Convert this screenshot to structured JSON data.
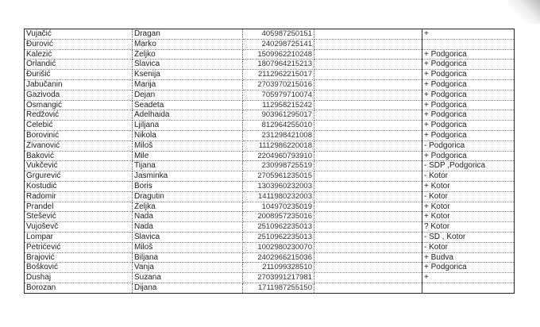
{
  "rows": [
    {
      "surname": "Vujačić",
      "name": "Dragan",
      "id": "405987250151",
      "note": "",
      "status": "+"
    },
    {
      "surname": "Đurović",
      "name": "Marko",
      "id": "240298725141",
      "note": "",
      "status": ""
    },
    {
      "surname": "Kalezić",
      "name": "Željko",
      "id": "1509962210248",
      "note": "",
      "status": "+ Podgorica"
    },
    {
      "surname": "Orlandić",
      "name": "Slavica",
      "id": "1807964215213",
      "note": "",
      "status": "+ Podgorica"
    },
    {
      "surname": "Đurišić",
      "name": "Ksenija",
      "id": "2112962215017",
      "note": "",
      "status": "+ Podgorica"
    },
    {
      "surname": "Jabučanin",
      "name": "Marija",
      "id": "2703970215016",
      "note": "",
      "status": "+ Podgorica"
    },
    {
      "surname": "Gazivoda",
      "name": "Dejan",
      "id": "705979710074",
      "note": "",
      "status": "+ Podgorica"
    },
    {
      "surname": "Osmangić",
      "name": "Seadeta",
      "id": "112958215242",
      "note": "",
      "status": "+ Podgorica"
    },
    {
      "surname": "Redžović",
      "name": "Adelhaida",
      "id": "903961295017",
      "note": "",
      "status": "+ Podgorica"
    },
    {
      "surname": "Čelebić",
      "name": "Ljiljana",
      "id": "812964255010",
      "note": "",
      "status": "+ Podgorica"
    },
    {
      "surname": "Borovinić",
      "name": "Nikola",
      "id": "231298421008",
      "note": "",
      "status": "+ Podgorica"
    },
    {
      "surname": "Živanović",
      "name": "Miloš",
      "id": "1112986220018",
      "note": "",
      "status": "- Podgorica"
    },
    {
      "surname": "Baković",
      "name": "Mile",
      "id": "2204960793910",
      "note": "",
      "status": "+ Podgorica"
    },
    {
      "surname": "Vukčević",
      "name": "Tijana",
      "id": "230998725519",
      "note": "",
      "status": "- SDP ,Podgorica"
    },
    {
      "surname": "Grgurević",
      "name": "Jasminka",
      "id": "2705961235015",
      "note": "",
      "status": "- Kotor"
    },
    {
      "surname": "Kostudić",
      "name": "Boris",
      "id": "1303960232003",
      "note": "",
      "status": "+ Kotor"
    },
    {
      "surname": "Radomir",
      "name": "Dragutin",
      "id": "1411980232003",
      "note": "",
      "status": "- Kotor"
    },
    {
      "surname": "Prandel",
      "name": "Željka",
      "id": "104970235019",
      "note": "",
      "status": "+ Kotor"
    },
    {
      "surname": "Stešević",
      "name": "Nada",
      "id": "2008957235016",
      "note": "",
      "status": "+ Kotor"
    },
    {
      "surname": "Vujoševč",
      "name": "Nada",
      "id": "2510962235013",
      "note": "",
      "status": "? Kotor"
    },
    {
      "surname": "Lompar",
      "name": "Slavica",
      "id": "2510962235013",
      "note": "",
      "status": "- SD , Kotor"
    },
    {
      "surname": "Petrićević",
      "name": "Miloš",
      "id": "1002980230070",
      "note": "",
      "status": "- Kotor"
    },
    {
      "surname": "Brajović",
      "name": "Biljana",
      "id": "2402966215036",
      "note": "",
      "status": "+ Budva"
    },
    {
      "surname": "Bošković",
      "name": "Vanja",
      "id": "211099328510",
      "note": "",
      "status": "+ Podgorica"
    },
    {
      "surname": "Dushaj",
      "name": "Suzana",
      "id": "2703991217981",
      "note": "",
      "status": "+"
    },
    {
      "surname": "Borozan",
      "name": "Dijana",
      "id": "1711987255150",
      "note": "",
      "status": ""
    }
  ]
}
